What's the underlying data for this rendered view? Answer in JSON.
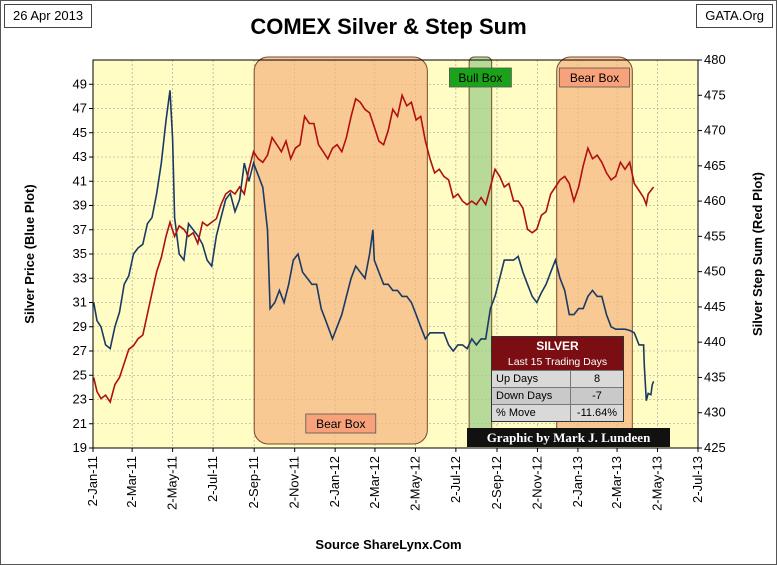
{
  "header": {
    "date": "26 Apr 2013",
    "site": "GATA.Org"
  },
  "footer": {
    "source": "Source ShareLynx.Com"
  },
  "stats_box": {
    "title": "SILVER",
    "subtitle": "Last 15 Trading Days",
    "rows": [
      {
        "label": "Up Days",
        "value": "8"
      },
      {
        "label": "Down Days",
        "value": "-7"
      },
      {
        "label": "% Move",
        "value": "-11.64%"
      }
    ]
  },
  "credit": {
    "prefix": "Graphic by ",
    "author": "Mark J. Lundeen"
  },
  "colors": {
    "plot_bg": "#fffcc4",
    "silver_line": "#1a3a66",
    "step_sum_line": "#b01010",
    "bear_box": "#f6b57f",
    "bull_box": "#9fcf8a",
    "bull_label": "#1aa21a",
    "bear_label": "#f7a27a"
  },
  "chart_data": {
    "type": "line",
    "title": "COMEX Silver & Step Sum",
    "xlabel": "",
    "ylabel": "Silver Price (Blue Plot)",
    "y2label": "Silver Step Sum (Red Plot)",
    "ylim": [
      19,
      51
    ],
    "y2lim": [
      425,
      480
    ],
    "yticks": [
      19,
      21,
      23,
      25,
      27,
      29,
      31,
      33,
      35,
      37,
      39,
      41,
      43,
      45,
      47,
      49
    ],
    "y2ticks": [
      425,
      430,
      435,
      440,
      445,
      450,
      455,
      460,
      465,
      470,
      475,
      480
    ],
    "xticks": [
      "2-Jan-11",
      "2-Mar-11",
      "2-May-11",
      "2-Jul-11",
      "2-Sep-11",
      "2-Nov-11",
      "2-Jan-12",
      "2-Mar-12",
      "2-May-12",
      "2-Jul-12",
      "2-Sep-12",
      "2-Nov-12",
      "2-Jan-13",
      "2-Mar-13",
      "2-May-13",
      "2-Jul-13"
    ],
    "xrange": [
      "2011-01-02",
      "2013-07-02"
    ],
    "grid": true,
    "annotations": [
      {
        "label": "Bear Box",
        "start": "2011-09-02",
        "end": "2012-05-20",
        "label_position": "bottom"
      },
      {
        "label": "Bull Box",
        "start": "2012-07-22",
        "end": "2012-08-25",
        "label_position": "top"
      },
      {
        "label": "Bear Box",
        "start": "2012-12-01",
        "end": "2013-03-25",
        "label_position": "top"
      }
    ],
    "series": [
      {
        "name": "Silver Price",
        "axis": "left",
        "points": [
          [
            "2011-01-03",
            31.0
          ],
          [
            "2011-01-08",
            29.5
          ],
          [
            "2011-01-14",
            29.0
          ],
          [
            "2011-01-21",
            27.5
          ],
          [
            "2011-01-28",
            27.2
          ],
          [
            "2011-02-04",
            29.0
          ],
          [
            "2011-02-11",
            30.2
          ],
          [
            "2011-02-18",
            32.5
          ],
          [
            "2011-02-25",
            33.2
          ],
          [
            "2011-03-04",
            35.0
          ],
          [
            "2011-03-11",
            35.5
          ],
          [
            "2011-03-18",
            35.8
          ],
          [
            "2011-03-25",
            37.5
          ],
          [
            "2011-04-01",
            38.0
          ],
          [
            "2011-04-08",
            40.0
          ],
          [
            "2011-04-15",
            42.5
          ],
          [
            "2011-04-22",
            46.0
          ],
          [
            "2011-04-28",
            48.5
          ],
          [
            "2011-05-02",
            44.5
          ],
          [
            "2011-05-05",
            38.0
          ],
          [
            "2011-05-12",
            35.0
          ],
          [
            "2011-05-19",
            34.5
          ],
          [
            "2011-05-26",
            37.5
          ],
          [
            "2011-06-02",
            37.0
          ],
          [
            "2011-06-09",
            36.5
          ],
          [
            "2011-06-16",
            35.8
          ],
          [
            "2011-06-23",
            34.5
          ],
          [
            "2011-06-30",
            34.0
          ],
          [
            "2011-07-07",
            36.5
          ],
          [
            "2011-07-14",
            38.0
          ],
          [
            "2011-07-21",
            39.5
          ],
          [
            "2011-07-28",
            40.0
          ],
          [
            "2011-08-04",
            38.5
          ],
          [
            "2011-08-11",
            39.5
          ],
          [
            "2011-08-18",
            42.5
          ],
          [
            "2011-08-25",
            41.0
          ],
          [
            "2011-09-01",
            42.5
          ],
          [
            "2011-09-08",
            41.5
          ],
          [
            "2011-09-15",
            40.5
          ],
          [
            "2011-09-22",
            37.0
          ],
          [
            "2011-09-26",
            30.5
          ],
          [
            "2011-10-03",
            31.0
          ],
          [
            "2011-10-10",
            32.0
          ],
          [
            "2011-10-17",
            31.0
          ],
          [
            "2011-10-24",
            32.5
          ],
          [
            "2011-10-31",
            34.5
          ],
          [
            "2011-11-07",
            35.0
          ],
          [
            "2011-11-14",
            33.5
          ],
          [
            "2011-11-21",
            33.0
          ],
          [
            "2011-11-28",
            32.5
          ],
          [
            "2011-12-05",
            32.5
          ],
          [
            "2011-12-12",
            30.5
          ],
          [
            "2011-12-19",
            29.5
          ],
          [
            "2011-12-29",
            28.0
          ],
          [
            "2012-01-05",
            29.0
          ],
          [
            "2012-01-12",
            30.0
          ],
          [
            "2012-01-19",
            31.5
          ],
          [
            "2012-01-26",
            33.0
          ],
          [
            "2012-02-02",
            34.0
          ],
          [
            "2012-02-09",
            33.5
          ],
          [
            "2012-02-16",
            33.0
          ],
          [
            "2012-02-23",
            35.0
          ],
          [
            "2012-02-28",
            37.0
          ],
          [
            "2012-03-01",
            34.5
          ],
          [
            "2012-03-08",
            33.5
          ],
          [
            "2012-03-15",
            32.5
          ],
          [
            "2012-03-22",
            32.5
          ],
          [
            "2012-03-29",
            32.0
          ],
          [
            "2012-04-05",
            32.0
          ],
          [
            "2012-04-12",
            31.5
          ],
          [
            "2012-04-19",
            31.5
          ],
          [
            "2012-04-26",
            31.0
          ],
          [
            "2012-05-03",
            30.0
          ],
          [
            "2012-05-10",
            29.0
          ],
          [
            "2012-05-17",
            28.0
          ],
          [
            "2012-05-24",
            28.5
          ],
          [
            "2012-05-31",
            28.5
          ],
          [
            "2012-06-07",
            28.5
          ],
          [
            "2012-06-14",
            28.5
          ],
          [
            "2012-06-21",
            27.5
          ],
          [
            "2012-06-28",
            27.0
          ],
          [
            "2012-07-05",
            27.5
          ],
          [
            "2012-07-12",
            27.5
          ],
          [
            "2012-07-19",
            27.2
          ],
          [
            "2012-07-26",
            28.0
          ],
          [
            "2012-08-02",
            27.5
          ],
          [
            "2012-08-09",
            28.0
          ],
          [
            "2012-08-16",
            28.0
          ],
          [
            "2012-08-23",
            30.5
          ],
          [
            "2012-08-30",
            31.5
          ],
          [
            "2012-09-06",
            33.0
          ],
          [
            "2012-09-13",
            34.5
          ],
          [
            "2012-09-20",
            34.5
          ],
          [
            "2012-09-27",
            34.5
          ],
          [
            "2012-10-04",
            34.8
          ],
          [
            "2012-10-11",
            33.5
          ],
          [
            "2012-10-18",
            32.5
          ],
          [
            "2012-10-25",
            31.5
          ],
          [
            "2012-11-01",
            31.0
          ],
          [
            "2012-11-08",
            31.8
          ],
          [
            "2012-11-15",
            32.5
          ],
          [
            "2012-11-22",
            33.5
          ],
          [
            "2012-11-29",
            34.5
          ],
          [
            "2012-12-06",
            33.0
          ],
          [
            "2012-12-13",
            32.0
          ],
          [
            "2012-12-20",
            30.0
          ],
          [
            "2012-12-27",
            30.0
          ],
          [
            "2013-01-03",
            30.5
          ],
          [
            "2013-01-10",
            30.5
          ],
          [
            "2013-01-17",
            31.5
          ],
          [
            "2013-01-24",
            32.0
          ],
          [
            "2013-01-31",
            31.5
          ],
          [
            "2013-02-07",
            31.5
          ],
          [
            "2013-02-14",
            30.0
          ],
          [
            "2013-02-21",
            29.0
          ],
          [
            "2013-02-28",
            28.8
          ],
          [
            "2013-03-07",
            28.8
          ],
          [
            "2013-03-14",
            28.8
          ],
          [
            "2013-03-21",
            28.7
          ],
          [
            "2013-03-28",
            28.5
          ],
          [
            "2013-04-04",
            27.5
          ],
          [
            "2013-04-11",
            27.5
          ],
          [
            "2013-04-12",
            25.8
          ],
          [
            "2013-04-15",
            22.9
          ],
          [
            "2013-04-18",
            23.5
          ],
          [
            "2013-04-22",
            23.4
          ],
          [
            "2013-04-24",
            24.2
          ],
          [
            "2013-04-26",
            24.5
          ]
        ]
      },
      {
        "name": "Silver Step Sum",
        "axis": "right",
        "points": [
          [
            "2011-01-03",
            435.0
          ],
          [
            "2011-01-08",
            433.0
          ],
          [
            "2011-01-14",
            432.0
          ],
          [
            "2011-01-21",
            432.5
          ],
          [
            "2011-01-28",
            431.5
          ],
          [
            "2011-02-04",
            434.0
          ],
          [
            "2011-02-11",
            435.0
          ],
          [
            "2011-02-18",
            437.0
          ],
          [
            "2011-02-25",
            439.0
          ],
          [
            "2011-03-04",
            439.5
          ],
          [
            "2011-03-11",
            440.5
          ],
          [
            "2011-03-18",
            441.0
          ],
          [
            "2011-03-25",
            444.0
          ],
          [
            "2011-04-01",
            447.0
          ],
          [
            "2011-04-08",
            450.0
          ],
          [
            "2011-04-15",
            452.0
          ],
          [
            "2011-04-22",
            455.0
          ],
          [
            "2011-04-28",
            457.0
          ],
          [
            "2011-05-05",
            455.0
          ],
          [
            "2011-05-12",
            456.5
          ],
          [
            "2011-05-19",
            456.0
          ],
          [
            "2011-05-26",
            455.0
          ],
          [
            "2011-06-02",
            455.5
          ],
          [
            "2011-06-09",
            454.0
          ],
          [
            "2011-06-16",
            457.0
          ],
          [
            "2011-06-23",
            456.5
          ],
          [
            "2011-06-30",
            457.0
          ],
          [
            "2011-07-07",
            457.5
          ],
          [
            "2011-07-14",
            459.5
          ],
          [
            "2011-07-21",
            461.0
          ],
          [
            "2011-07-28",
            461.5
          ],
          [
            "2011-08-04",
            461.0
          ],
          [
            "2011-08-11",
            462.0
          ],
          [
            "2011-08-18",
            461.0
          ],
          [
            "2011-08-25",
            464.5
          ],
          [
            "2011-09-01",
            467.0
          ],
          [
            "2011-09-08",
            466.0
          ],
          [
            "2011-09-15",
            465.5
          ],
          [
            "2011-09-22",
            466.5
          ],
          [
            "2011-09-29",
            469.0
          ],
          [
            "2011-10-06",
            468.0
          ],
          [
            "2011-10-13",
            467.0
          ],
          [
            "2011-10-20",
            468.5
          ],
          [
            "2011-10-27",
            466.0
          ],
          [
            "2011-11-03",
            467.5
          ],
          [
            "2011-11-10",
            468.0
          ],
          [
            "2011-11-17",
            472.0
          ],
          [
            "2011-11-24",
            471.0
          ],
          [
            "2011-12-01",
            471.0
          ],
          [
            "2011-12-08",
            468.0
          ],
          [
            "2011-12-15",
            467.0
          ],
          [
            "2011-12-22",
            466.0
          ],
          [
            "2011-12-29",
            467.5
          ],
          [
            "2012-01-05",
            468.0
          ],
          [
            "2012-01-12",
            467.0
          ],
          [
            "2012-01-19",
            469.0
          ],
          [
            "2012-01-26",
            472.0
          ],
          [
            "2012-02-02",
            474.5
          ],
          [
            "2012-02-09",
            474.0
          ],
          [
            "2012-02-16",
            473.0
          ],
          [
            "2012-02-23",
            472.5
          ],
          [
            "2012-03-01",
            470.5
          ],
          [
            "2012-03-08",
            468.5
          ],
          [
            "2012-03-15",
            468.0
          ],
          [
            "2012-03-22",
            470.0
          ],
          [
            "2012-03-29",
            473.0
          ],
          [
            "2012-04-05",
            472.0
          ],
          [
            "2012-04-12",
            475.0
          ],
          [
            "2012-04-19",
            473.5
          ],
          [
            "2012-04-26",
            474.0
          ],
          [
            "2012-05-03",
            471.5
          ],
          [
            "2012-05-10",
            472.0
          ],
          [
            "2012-05-17",
            468.5
          ],
          [
            "2012-05-24",
            466.0
          ],
          [
            "2012-05-31",
            464.0
          ],
          [
            "2012-06-07",
            464.5
          ],
          [
            "2012-06-14",
            463.5
          ],
          [
            "2012-06-21",
            463.0
          ],
          [
            "2012-06-28",
            460.5
          ],
          [
            "2012-07-05",
            461.0
          ],
          [
            "2012-07-12",
            460.0
          ],
          [
            "2012-07-19",
            459.5
          ],
          [
            "2012-07-26",
            460.0
          ],
          [
            "2012-08-02",
            459.5
          ],
          [
            "2012-08-09",
            460.5
          ],
          [
            "2012-08-16",
            459.5
          ],
          [
            "2012-08-23",
            462.0
          ],
          [
            "2012-08-30",
            464.5
          ],
          [
            "2012-09-06",
            463.5
          ],
          [
            "2012-09-13",
            462.0
          ],
          [
            "2012-09-20",
            462.5
          ],
          [
            "2012-09-27",
            460.0
          ],
          [
            "2012-10-04",
            460.0
          ],
          [
            "2012-10-11",
            459.0
          ],
          [
            "2012-10-18",
            456.0
          ],
          [
            "2012-10-25",
            455.5
          ],
          [
            "2012-11-01",
            456.0
          ],
          [
            "2012-11-08",
            458.0
          ],
          [
            "2012-11-15",
            458.5
          ],
          [
            "2012-11-22",
            461.0
          ],
          [
            "2012-11-29",
            462.0
          ],
          [
            "2012-12-06",
            463.0
          ],
          [
            "2012-12-13",
            463.5
          ],
          [
            "2012-12-20",
            462.5
          ],
          [
            "2012-12-27",
            460.0
          ],
          [
            "2013-01-03",
            462.0
          ],
          [
            "2013-01-10",
            465.0
          ],
          [
            "2013-01-17",
            467.5
          ],
          [
            "2013-01-24",
            466.0
          ],
          [
            "2013-01-31",
            466.5
          ],
          [
            "2013-02-07",
            465.5
          ],
          [
            "2013-02-14",
            464.0
          ],
          [
            "2013-02-21",
            463.0
          ],
          [
            "2013-02-28",
            463.5
          ],
          [
            "2013-03-07",
            465.5
          ],
          [
            "2013-03-14",
            464.5
          ],
          [
            "2013-03-21",
            465.5
          ],
          [
            "2013-03-28",
            462.5
          ],
          [
            "2013-04-04",
            461.5
          ],
          [
            "2013-04-11",
            460.5
          ],
          [
            "2013-04-15",
            459.5
          ],
          [
            "2013-04-18",
            461.0
          ],
          [
            "2013-04-22",
            461.5
          ],
          [
            "2013-04-26",
            462.0
          ]
        ]
      }
    ]
  }
}
